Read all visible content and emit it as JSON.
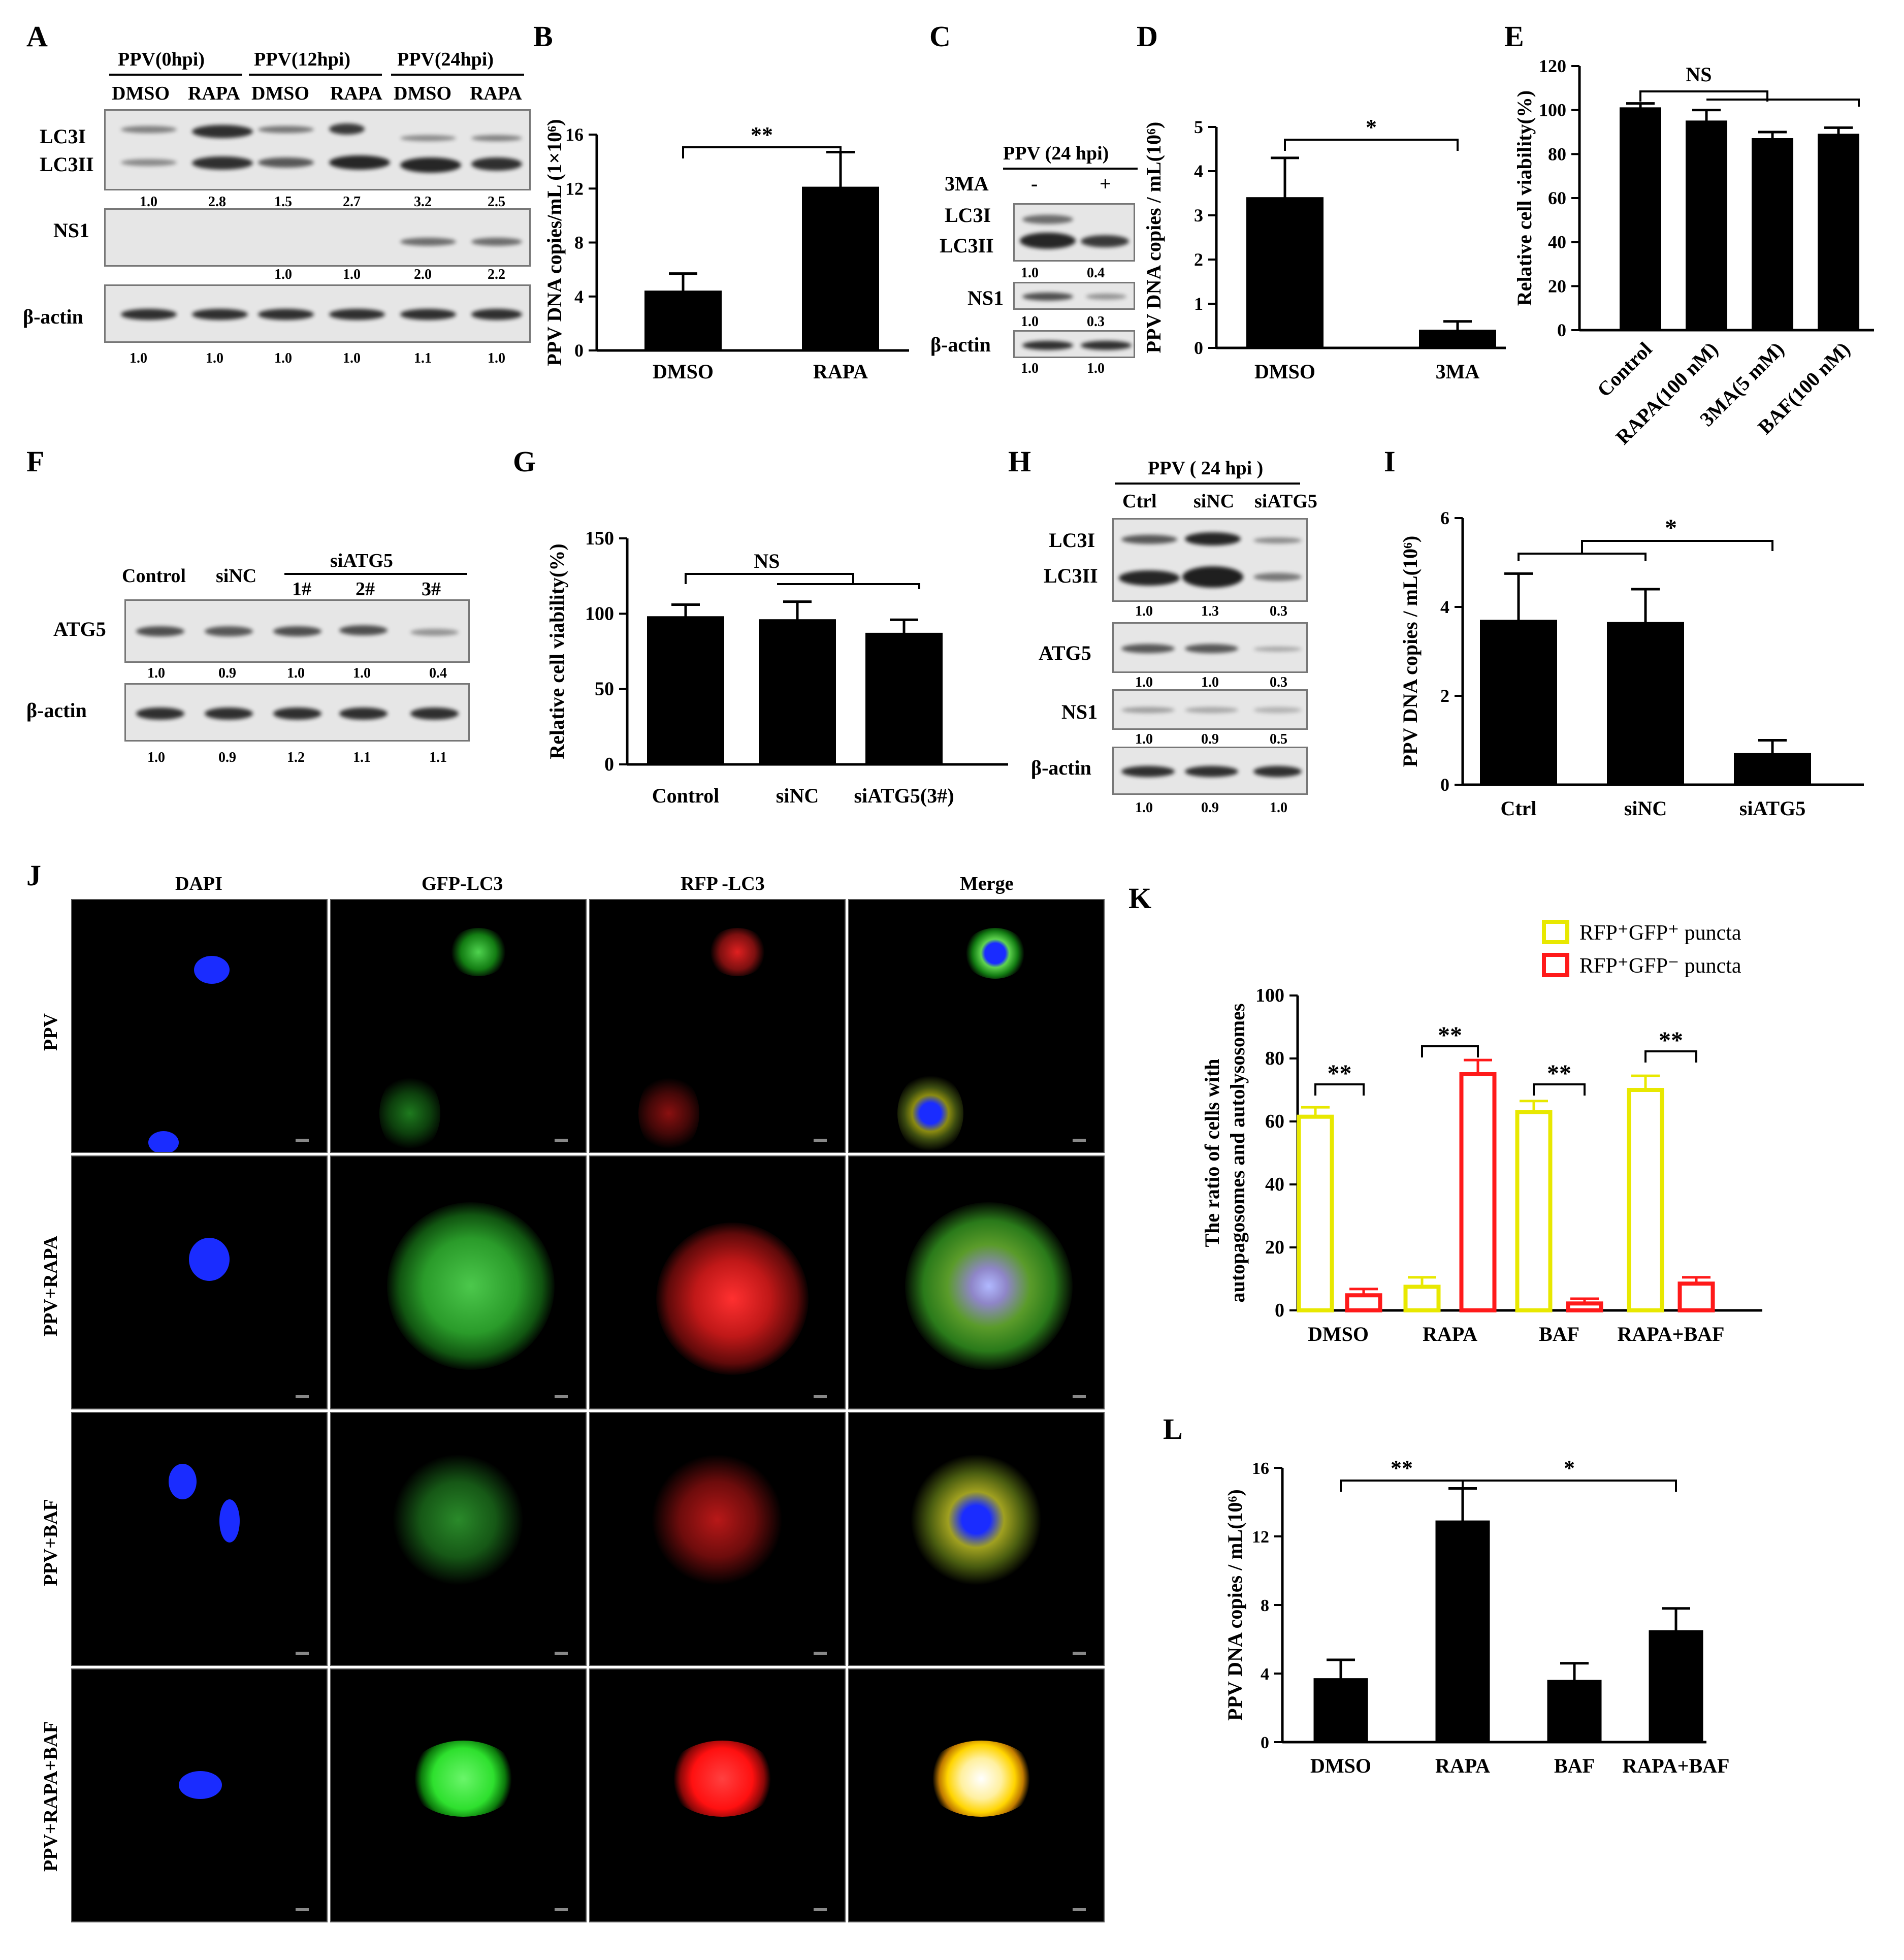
{
  "panels": {
    "A": "A",
    "B": "B",
    "C": "C",
    "D": "D",
    "E": "E",
    "F": "F",
    "G": "G",
    "H": "H",
    "I": "I",
    "J": "J",
    "K": "K",
    "L": "L"
  },
  "panelA": {
    "groups": [
      "PPV(0hpi)",
      "PPV(12hpi)",
      "PPV(24hpi)"
    ],
    "lanes": [
      "DMSO",
      "RAPA",
      "DMSO",
      "RAPA",
      "DMSO",
      "RAPA"
    ],
    "rows": [
      "LC3I",
      "LC3II",
      "NS1",
      "β-actin"
    ],
    "lc3_q": [
      "1.0",
      "2.8",
      "1.5",
      "2.7",
      "3.2",
      "2.5"
    ],
    "ns1_q": [
      "1.0",
      "1.0",
      "2.0",
      "2.2"
    ],
    "actin_q": [
      "1.0",
      "1.0",
      "1.0",
      "1.0",
      "1.1",
      "1.0"
    ]
  },
  "panelC": {
    "header": "PPV   (24 hpi)",
    "treat_label": "3MA",
    "treat": [
      "-",
      "+"
    ],
    "rows": [
      "LC3I",
      "LC3II",
      "NS1",
      "β-actin"
    ],
    "lc3_q": [
      "1.0",
      "0.4"
    ],
    "ns1_q": [
      "1.0",
      "0.3"
    ],
    "actin_q": [
      "1.0",
      "1.0"
    ]
  },
  "panelF": {
    "lanes": [
      "Control",
      "siNC",
      "1#",
      "2#",
      "3#"
    ],
    "group": "siATG5",
    "rows": [
      "ATG5",
      "β-actin"
    ],
    "atg5_q": [
      "1.0",
      "0.9",
      "1.0",
      "1.0",
      "0.4"
    ],
    "actin_q": [
      "1.0",
      "0.9",
      "1.2",
      "1.1",
      "1.1"
    ]
  },
  "panelH": {
    "header": "PPV ( 24 hpi )",
    "lanes": [
      "Ctrl",
      "siNC",
      "siATG5"
    ],
    "rows": [
      "LC3I",
      "LC3II",
      "ATG5",
      "NS1",
      "β-actin"
    ],
    "lc3_q": [
      "1.0",
      "1.3",
      "0.3"
    ],
    "atg5_q": [
      "1.0",
      "1.0",
      "0.3"
    ],
    "ns1_q": [
      "1.0",
      "0.9",
      "0.5"
    ],
    "actin_q": [
      "1.0",
      "0.9",
      "1.0"
    ]
  },
  "panelJ": {
    "cols": [
      "DAPI",
      "GFP-LC3",
      "RFP -LC3",
      "Merge"
    ],
    "rows": [
      "PPV",
      "PPV+RAPA",
      "PPV+BAF",
      "PPV+RAPA+BAF"
    ]
  },
  "chart_data": [
    {
      "panel": "B",
      "type": "bar",
      "categories": [
        "DMSO",
        "RAPA"
      ],
      "values": [
        4.4,
        12.1
      ],
      "errors": [
        1.3,
        2.6
      ],
      "ylabel": "PPV DNA copies/mL (1×10⁶)",
      "ylim": [
        0,
        16
      ],
      "yticks": [
        0,
        4,
        8,
        12,
        16
      ],
      "sig": [
        {
          "from": 0,
          "to": 1,
          "label": "**"
        }
      ]
    },
    {
      "panel": "D",
      "type": "bar",
      "categories": [
        "DMSO",
        "3MA"
      ],
      "values": [
        3.4,
        0.4
      ],
      "errors": [
        0.9,
        0.2
      ],
      "ylabel": "PPV DNA copies / mL(10⁶)",
      "ylim": [
        0,
        5
      ],
      "yticks": [
        0,
        1,
        2,
        3,
        4,
        5
      ],
      "sig": [
        {
          "from": 0,
          "to": 1,
          "label": "*"
        }
      ]
    },
    {
      "panel": "E",
      "type": "bar",
      "categories": [
        "Control",
        "RAPA(100 nM)",
        "3MA(5 mM)",
        "BAF(100 nM)"
      ],
      "values": [
        101,
        95,
        87,
        89
      ],
      "errors": [
        2,
        5,
        3,
        3
      ],
      "ylabel": "Relative cell viability(%)",
      "ylim": [
        0,
        120
      ],
      "yticks": [
        0,
        20,
        40,
        60,
        80,
        100,
        120
      ],
      "sig_label": "NS"
    },
    {
      "panel": "G",
      "type": "bar",
      "categories": [
        "Control",
        "siNC",
        "siATG5(3#)"
      ],
      "values": [
        98,
        96,
        87
      ],
      "errors": [
        8,
        12,
        9
      ],
      "ylabel": "Relative cell viability(%)",
      "ylim": [
        0,
        150
      ],
      "yticks": [
        0,
        50,
        100,
        150
      ],
      "sig_label": "NS"
    },
    {
      "panel": "I",
      "type": "bar",
      "categories": [
        "Ctrl",
        "siNC",
        "siATG5"
      ],
      "values": [
        3.7,
        3.65,
        0.7
      ],
      "errors": [
        1.05,
        0.75,
        0.3
      ],
      "ylabel": "PPV DNA copies / mL(10⁶)",
      "ylim": [
        0,
        6
      ],
      "yticks": [
        0,
        2,
        4,
        6
      ],
      "sig_label": "*"
    },
    {
      "panel": "K",
      "type": "bar",
      "categories": [
        "DMSO",
        "RAPA",
        "BAF",
        "RAPA+BAF"
      ],
      "series": [
        {
          "name": "RFP⁺GFP⁺ puncta",
          "color": "#e8e800",
          "values": [
            61.5,
            7.5,
            63,
            70
          ],
          "errors": [
            3,
            3,
            3.5,
            4.5
          ]
        },
        {
          "name": "RFP⁺GFP⁻ puncta",
          "color": "#ff1a1a",
          "values": [
            4.8,
            75,
            2.2,
            8.5
          ],
          "errors": [
            2,
            4.5,
            1.5,
            2
          ]
        }
      ],
      "ylabel": "The ratio of cells with autopagosomes and autolysosomes",
      "ylim": [
        0,
        100
      ],
      "yticks": [
        0,
        20,
        40,
        60,
        80,
        100
      ],
      "sig_label": "**",
      "legend": "top-right"
    },
    {
      "panel": "L",
      "type": "bar",
      "categories": [
        "DMSO",
        "RAPA",
        "BAF",
        "RAPA+BAF"
      ],
      "values": [
        3.7,
        12.9,
        3.6,
        6.5
      ],
      "errors": [
        1.1,
        1.9,
        1.0,
        1.3
      ],
      "ylabel": "PPV DNA copies / mL(10⁶)",
      "ylim": [
        0,
        16
      ],
      "yticks": [
        0,
        4,
        8,
        12,
        16
      ],
      "sig": [
        {
          "from": 0,
          "to": 1,
          "label": "**"
        },
        {
          "from": 1,
          "to": 3,
          "label": "*"
        }
      ]
    }
  ]
}
